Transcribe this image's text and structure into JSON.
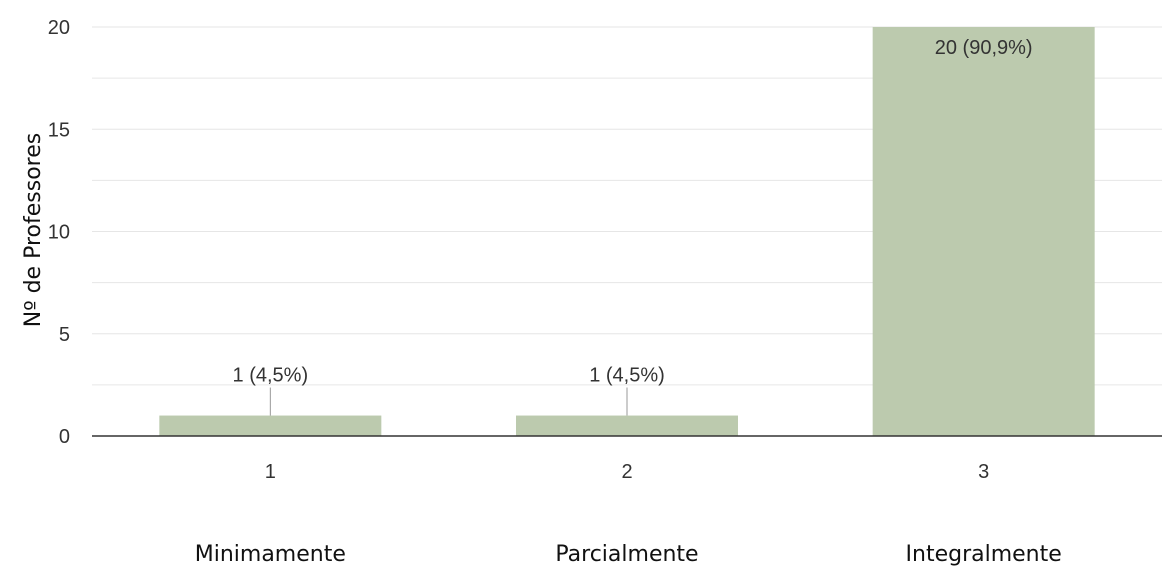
{
  "chart_data": {
    "type": "bar",
    "categories": [
      "1",
      "2",
      "3"
    ],
    "category_descriptions": [
      "Minimamente",
      "Parcialmente",
      "Integralmente"
    ],
    "values": [
      1,
      1,
      20
    ],
    "data_labels": [
      "1 (4,5%)",
      "1 (4,5%)",
      "20 (90,9%)"
    ],
    "title": "",
    "xlabel": "",
    "ylabel": "Nº de Professores",
    "ylim": [
      0,
      20
    ],
    "yticks": [
      0,
      5,
      10,
      15,
      20
    ],
    "grid": true,
    "legend": "none",
    "bar_color": "#bccaae",
    "gridline_color": "#e6e6e6",
    "axis_color": "#333333"
  }
}
